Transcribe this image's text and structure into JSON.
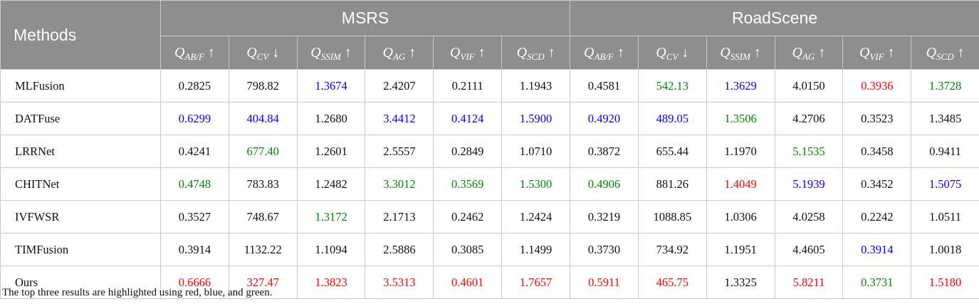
{
  "table": {
    "methods_header": "Methods",
    "groups": [
      "MSRS",
      "RoadScene"
    ],
    "metrics": [
      {
        "q": "Q",
        "sub": "AB/F",
        "arrow": "↑"
      },
      {
        "q": "Q",
        "sub": "CV",
        "arrow": "↓"
      },
      {
        "q": "Q",
        "sub": "SSIM",
        "arrow": "↑"
      },
      {
        "q": "Q",
        "sub": "AG",
        "arrow": "↑"
      },
      {
        "q": "Q",
        "sub": "VIF",
        "arrow": "↑"
      },
      {
        "q": "Q",
        "sub": "SCD",
        "arrow": "↑"
      }
    ],
    "rows": [
      {
        "method": "MLFusion",
        "cells": [
          {
            "v": "0.2825",
            "c": "black"
          },
          {
            "v": "798.82",
            "c": "black"
          },
          {
            "v": "1.3674",
            "c": "blue"
          },
          {
            "v": "2.4207",
            "c": "black"
          },
          {
            "v": "0.2111",
            "c": "black"
          },
          {
            "v": "1.1943",
            "c": "black"
          },
          {
            "v": "0.4581",
            "c": "black"
          },
          {
            "v": "542.13",
            "c": "green"
          },
          {
            "v": "1.3629",
            "c": "blue"
          },
          {
            "v": "4.0150",
            "c": "black"
          },
          {
            "v": "0.3936",
            "c": "red"
          },
          {
            "v": "1.3728",
            "c": "green"
          }
        ]
      },
      {
        "method": "DATFuse",
        "cells": [
          {
            "v": "0.6299",
            "c": "blue"
          },
          {
            "v": "404.84",
            "c": "blue"
          },
          {
            "v": "1.2680",
            "c": "black"
          },
          {
            "v": "3.4412",
            "c": "blue"
          },
          {
            "v": "0.4124",
            "c": "blue"
          },
          {
            "v": "1.5900",
            "c": "blue"
          },
          {
            "v": "0.4920",
            "c": "blue"
          },
          {
            "v": "489.05",
            "c": "blue"
          },
          {
            "v": "1.3506",
            "c": "green"
          },
          {
            "v": "4.2706",
            "c": "black"
          },
          {
            "v": "0.3523",
            "c": "black"
          },
          {
            "v": "1.3485",
            "c": "black"
          }
        ]
      },
      {
        "method": "LRRNet",
        "cells": [
          {
            "v": "0.4241",
            "c": "black"
          },
          {
            "v": "677.40",
            "c": "green"
          },
          {
            "v": "1.2601",
            "c": "black"
          },
          {
            "v": "2.5557",
            "c": "black"
          },
          {
            "v": "0.2849",
            "c": "black"
          },
          {
            "v": "1.0710",
            "c": "black"
          },
          {
            "v": "0.3872",
            "c": "black"
          },
          {
            "v": "655.44",
            "c": "black"
          },
          {
            "v": "1.1970",
            "c": "black"
          },
          {
            "v": "5.1535",
            "c": "green"
          },
          {
            "v": "0.3458",
            "c": "black"
          },
          {
            "v": "0.9411",
            "c": "black"
          }
        ]
      },
      {
        "method": "CHITNet",
        "cells": [
          {
            "v": "0.4748",
            "c": "green"
          },
          {
            "v": "783.83",
            "c": "black"
          },
          {
            "v": "1.2482",
            "c": "black"
          },
          {
            "v": "3.3012",
            "c": "green"
          },
          {
            "v": "0.3569",
            "c": "green"
          },
          {
            "v": "1.5300",
            "c": "green"
          },
          {
            "v": "0.4906",
            "c": "green"
          },
          {
            "v": "881.26",
            "c": "black"
          },
          {
            "v": "1.4049",
            "c": "red"
          },
          {
            "v": "5.1939",
            "c": "blue"
          },
          {
            "v": "0.3452",
            "c": "black"
          },
          {
            "v": "1.5075",
            "c": "blue"
          }
        ]
      },
      {
        "method": "IVFWSR",
        "cells": [
          {
            "v": "0.3527",
            "c": "black"
          },
          {
            "v": "748.67",
            "c": "black"
          },
          {
            "v": "1.3172",
            "c": "green"
          },
          {
            "v": "2.1713",
            "c": "black"
          },
          {
            "v": "0.2462",
            "c": "black"
          },
          {
            "v": "1.2424",
            "c": "black"
          },
          {
            "v": "0.3219",
            "c": "black"
          },
          {
            "v": "1088.85",
            "c": "black"
          },
          {
            "v": "1.0306",
            "c": "black"
          },
          {
            "v": "4.0258",
            "c": "black"
          },
          {
            "v": "0.2242",
            "c": "black"
          },
          {
            "v": "1.0511",
            "c": "black"
          }
        ]
      },
      {
        "method": "TIMFusion",
        "cells": [
          {
            "v": "0.3914",
            "c": "black"
          },
          {
            "v": "1132.22",
            "c": "black"
          },
          {
            "v": "1.1094",
            "c": "black"
          },
          {
            "v": "2.5886",
            "c": "black"
          },
          {
            "v": "0.3085",
            "c": "black"
          },
          {
            "v": "1.1499",
            "c": "black"
          },
          {
            "v": "0.3730",
            "c": "black"
          },
          {
            "v": "734.92",
            "c": "black"
          },
          {
            "v": "1.1951",
            "c": "black"
          },
          {
            "v": "4.4605",
            "c": "black"
          },
          {
            "v": "0.3914",
            "c": "blue"
          },
          {
            "v": "1.0018",
            "c": "black"
          }
        ]
      },
      {
        "method": "Ours",
        "cells": [
          {
            "v": "0.6666",
            "c": "red"
          },
          {
            "v": "327.47",
            "c": "red"
          },
          {
            "v": "1.3823",
            "c": "red"
          },
          {
            "v": "3.5313",
            "c": "red"
          },
          {
            "v": "0.4601",
            "c": "red"
          },
          {
            "v": "1.7657",
            "c": "red"
          },
          {
            "v": "0.5911",
            "c": "red"
          },
          {
            "v": "465.75",
            "c": "red"
          },
          {
            "v": "1.3325",
            "c": "black"
          },
          {
            "v": "5.8211",
            "c": "red"
          },
          {
            "v": "0.3731",
            "c": "green"
          },
          {
            "v": "1.5180",
            "c": "red"
          }
        ]
      }
    ]
  },
  "colors": {
    "red": "#ff0000",
    "blue": "#0000ff",
    "green": "#008800",
    "header_bg": "#8e8e8e"
  },
  "footnote": "The top three results are highlighted using red, blue, and green."
}
